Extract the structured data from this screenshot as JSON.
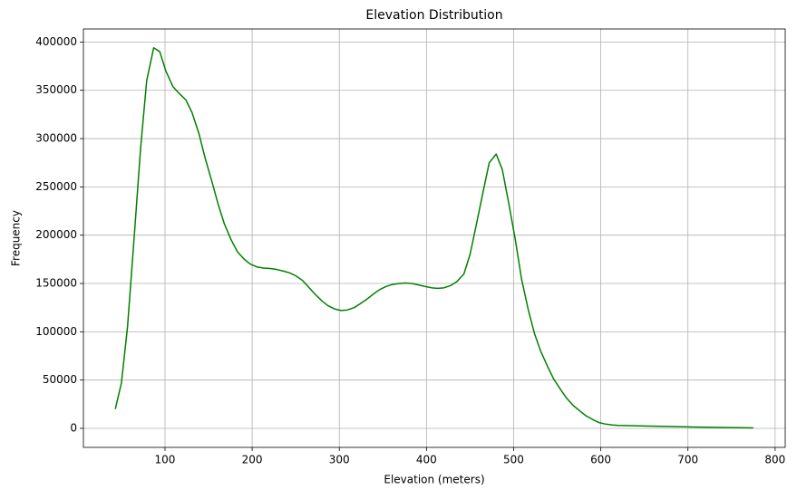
{
  "chart_data": {
    "type": "line",
    "title": "Elevation Distribution",
    "xlabel": "Elevation (meters)",
    "ylabel": "Frequency",
    "x": [
      43,
      50,
      57,
      64,
      72,
      79,
      87,
      94,
      101,
      109,
      116,
      124,
      131,
      139,
      146,
      154,
      161,
      168,
      176,
      183,
      191,
      198,
      206,
      213,
      221,
      228,
      235,
      243,
      250,
      258,
      265,
      272,
      280,
      287,
      295,
      302,
      309,
      317,
      324,
      332,
      339,
      346,
      354,
      361,
      369,
      376,
      383,
      391,
      398,
      406,
      413,
      420,
      428,
      435,
      443,
      450,
      457,
      465,
      472,
      480,
      487,
      494,
      502,
      509,
      517,
      524,
      531,
      539,
      546,
      554,
      561,
      568,
      576,
      583,
      591,
      598,
      605,
      613,
      620,
      650,
      700,
      775
    ],
    "values": [
      20000,
      47000,
      105000,
      190000,
      290000,
      360000,
      394000,
      390000,
      370000,
      354000,
      347000,
      340000,
      327000,
      305000,
      280000,
      255000,
      232000,
      212000,
      195000,
      183000,
      175000,
      170000,
      167000,
      166000,
      165500,
      164500,
      163000,
      161000,
      158000,
      153000,
      146000,
      139000,
      132000,
      127000,
      123500,
      122000,
      122500,
      125000,
      129000,
      134000,
      139000,
      143500,
      147000,
      149000,
      150000,
      150500,
      150000,
      148500,
      147000,
      145500,
      145000,
      145500,
      148000,
      152000,
      160000,
      180000,
      210000,
      245000,
      275000,
      284000,
      268000,
      235000,
      195000,
      155000,
      122000,
      98000,
      80000,
      64000,
      51000,
      40000,
      31000,
      24000,
      18000,
      13000,
      9000,
      6000,
      4500,
      3500,
      3000,
      2500,
      1500,
      500
    ],
    "color": "#008000",
    "xlim": [
      6.4,
      811.6
    ],
    "xticks": [
      100,
      200,
      300,
      400,
      500,
      600,
      700,
      800
    ],
    "ylim": [
      -19700,
      413500
    ],
    "yticks": [
      0,
      50000,
      100000,
      150000,
      200000,
      250000,
      300000,
      350000,
      400000
    ],
    "grid": true
  }
}
